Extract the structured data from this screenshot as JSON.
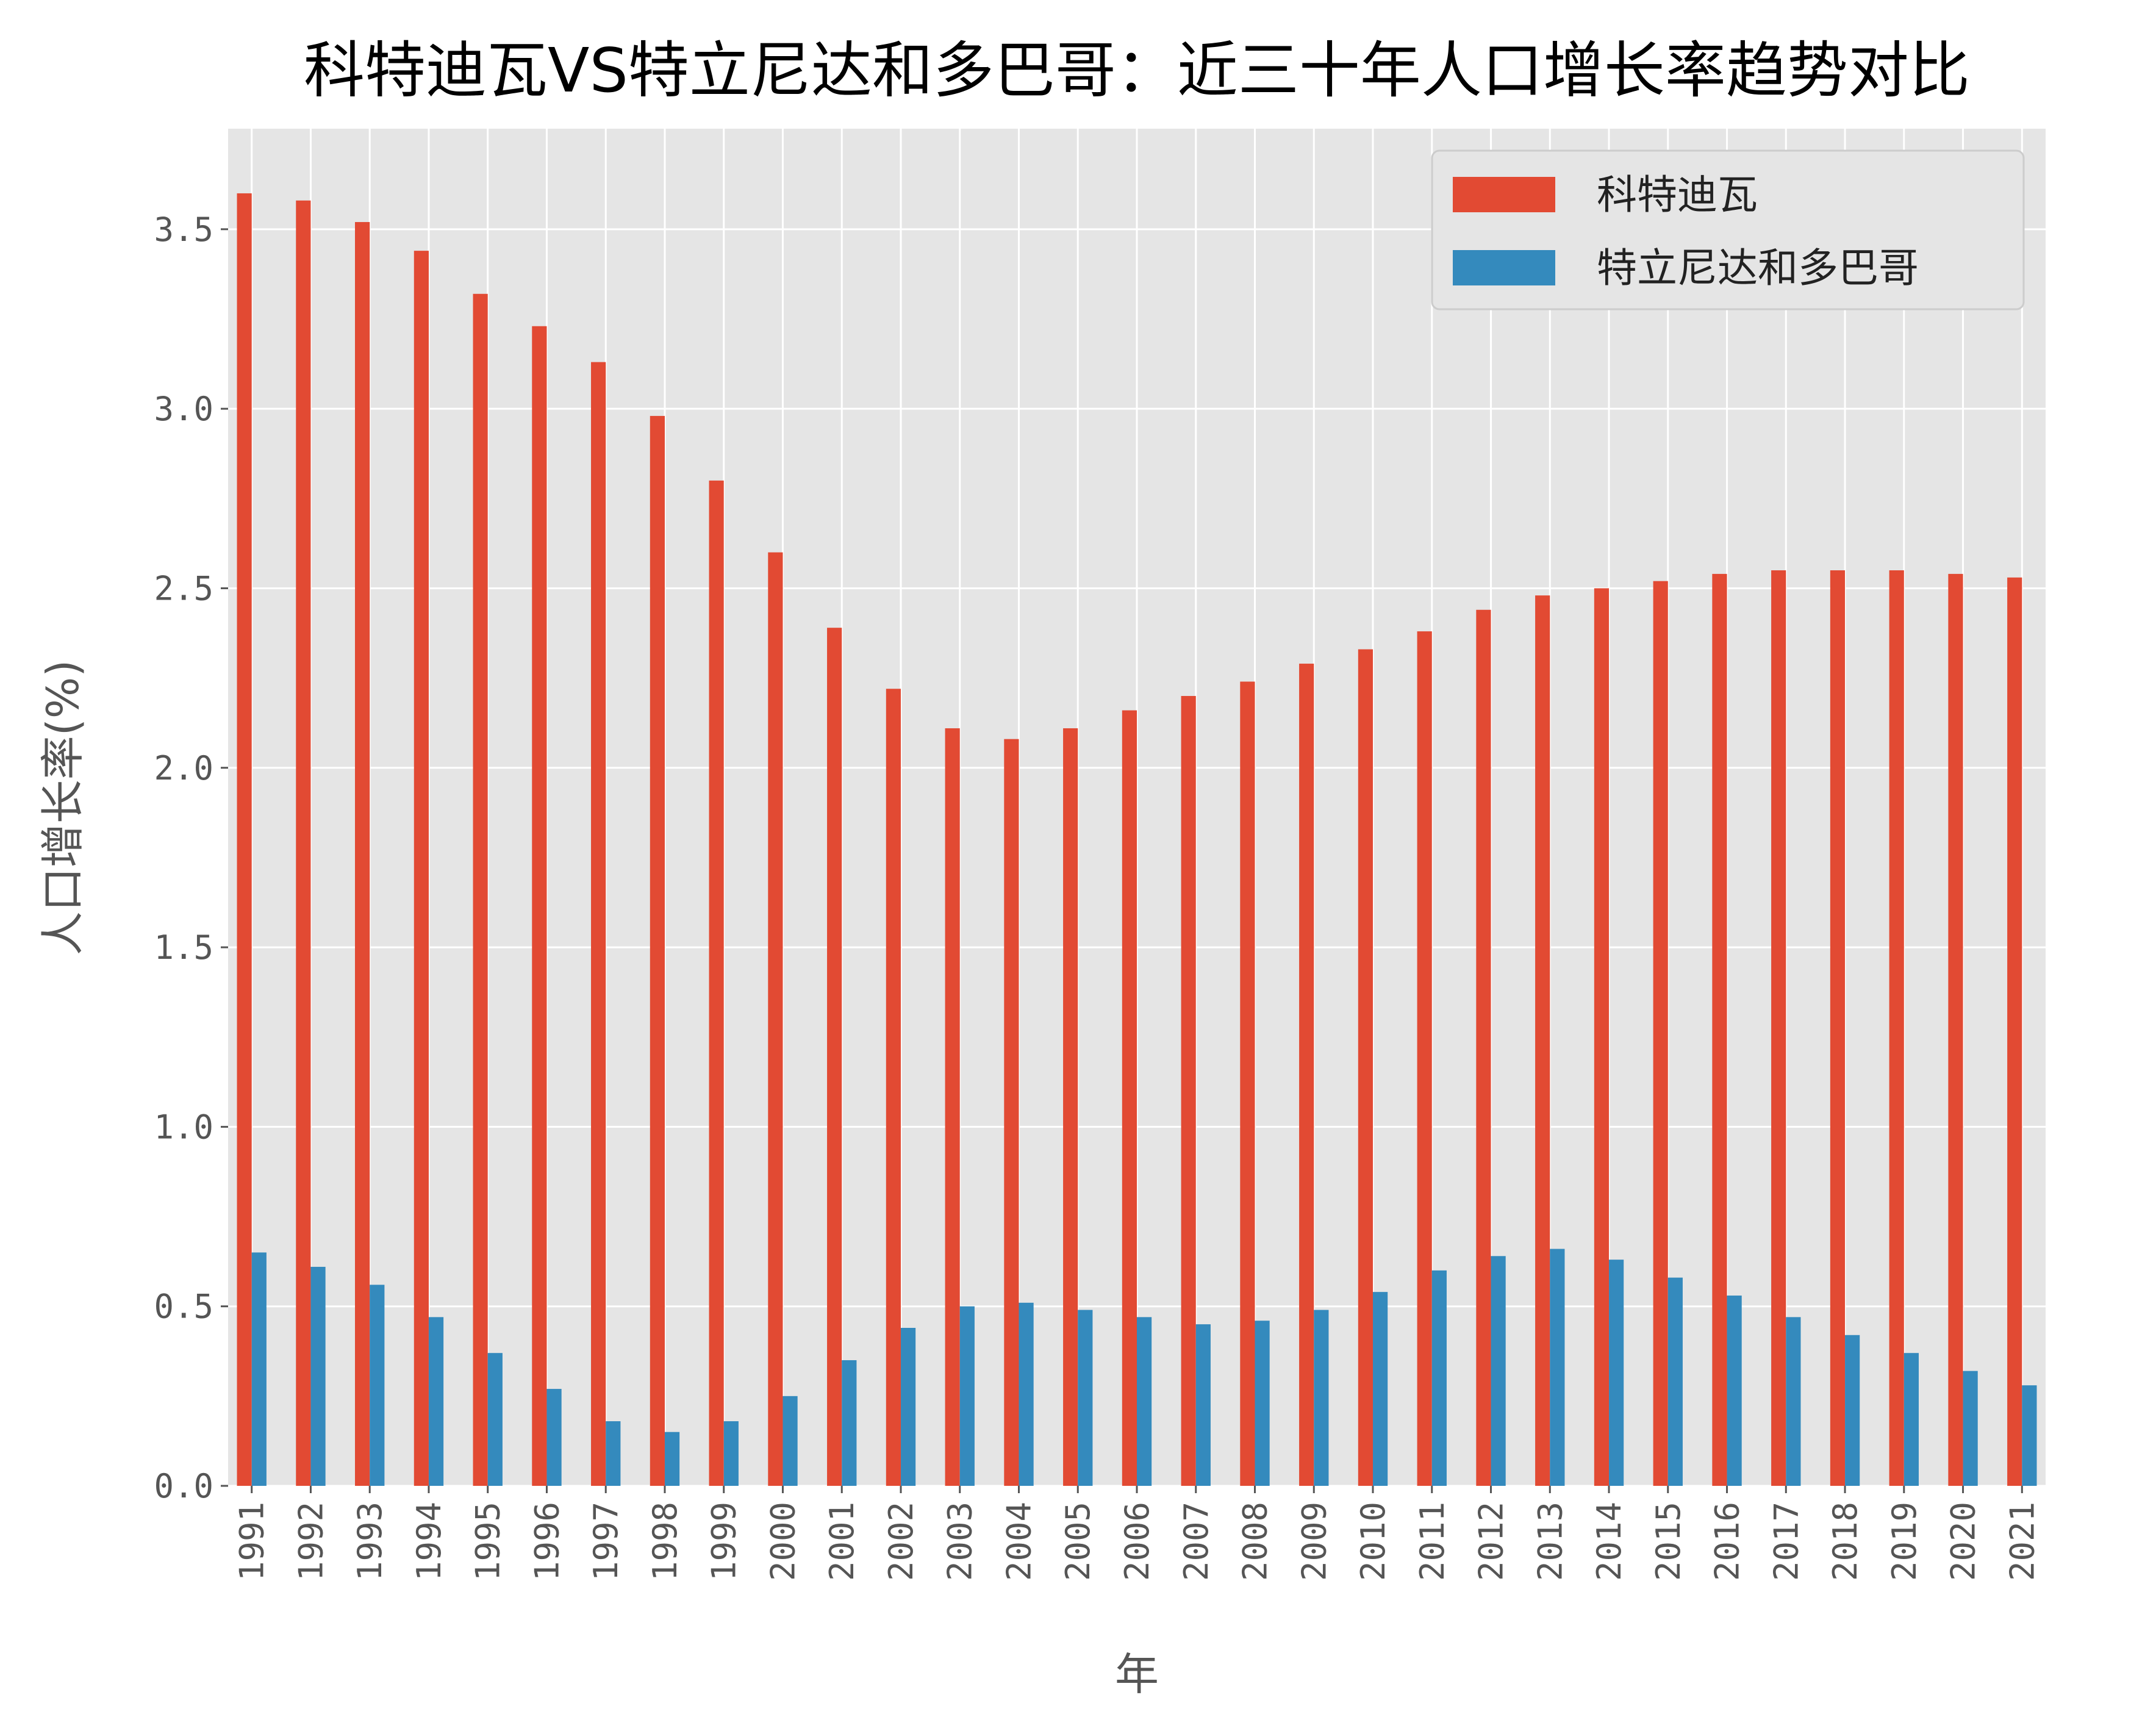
{
  "chart_data": {
    "type": "bar",
    "title": "科特迪瓦VS特立尼达和多巴哥：近三十年人口增长率趋势对比",
    "xlabel": "年",
    "ylabel": "人口增长率(%)",
    "ylim": [
      0,
      3.78
    ],
    "yticks": [
      "0.0",
      "0.5",
      "1.0",
      "1.5",
      "2.0",
      "2.5",
      "3.0",
      "3.5"
    ],
    "grid": true,
    "legend_placement": "top-right",
    "categories": [
      "1991",
      "1992",
      "1993",
      "1994",
      "1995",
      "1996",
      "1997",
      "1998",
      "1999",
      "2000",
      "2001",
      "2002",
      "2003",
      "2004",
      "2005",
      "2006",
      "2007",
      "2008",
      "2009",
      "2010",
      "2011",
      "2012",
      "2013",
      "2014",
      "2015",
      "2016",
      "2017",
      "2018",
      "2019",
      "2020",
      "2021"
    ],
    "series": [
      {
        "name": "科特迪瓦",
        "color": "#E24A33",
        "values": [
          3.6,
          3.58,
          3.52,
          3.44,
          3.32,
          3.23,
          3.13,
          2.98,
          2.8,
          2.6,
          2.39,
          2.22,
          2.11,
          2.08,
          2.11,
          2.16,
          2.2,
          2.24,
          2.29,
          2.33,
          2.38,
          2.44,
          2.48,
          2.5,
          2.52,
          2.54,
          2.55,
          2.55,
          2.55,
          2.54,
          2.53
        ]
      },
      {
        "name": "特立尼达和多巴哥",
        "color": "#348ABD",
        "values": [
          0.65,
          0.61,
          0.56,
          0.47,
          0.37,
          0.27,
          0.18,
          0.15,
          0.18,
          0.25,
          0.35,
          0.44,
          0.5,
          0.51,
          0.49,
          0.47,
          0.45,
          0.46,
          0.49,
          0.54,
          0.6,
          0.64,
          0.66,
          0.63,
          0.58,
          0.53,
          0.47,
          0.42,
          0.37,
          0.32,
          0.28
        ]
      }
    ]
  }
}
